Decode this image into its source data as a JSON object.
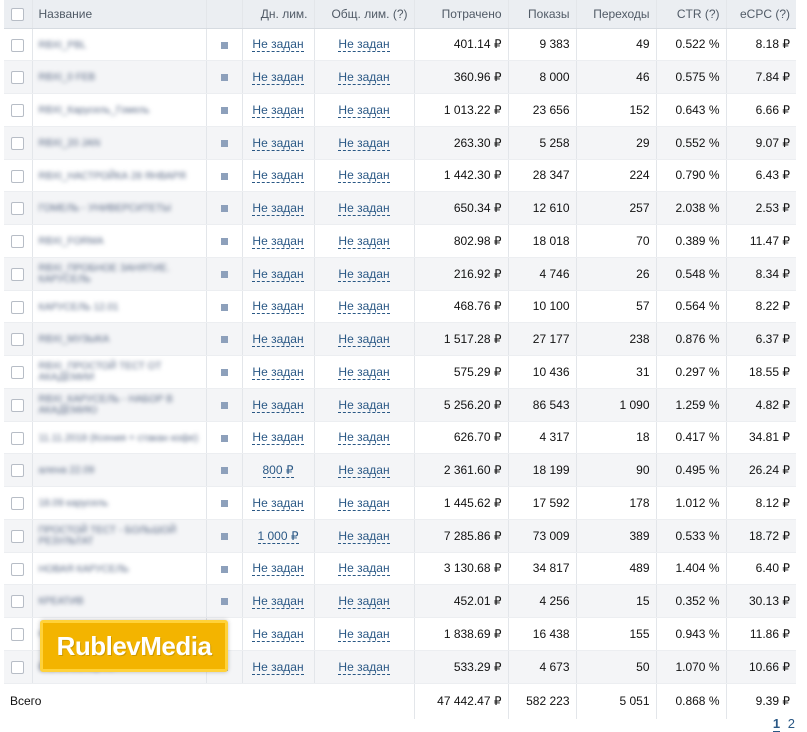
{
  "header": {
    "name": "Название",
    "daily_limit": "Дн. лим.",
    "total_limit": "Общ. лим. (?)",
    "spent": "Потрачено",
    "impressions": "Показы",
    "clicks": "Переходы",
    "ctr": "CTR (?)",
    "ecpc": "eCPC (?)"
  },
  "rows": [
    {
      "name": "RBXI_PBL",
      "daily": "Не задан",
      "total": "Не задан",
      "spent": "401.14 ₽",
      "impressions": "9 383",
      "clicks": "49",
      "ctr": "0.522 %",
      "ecpc": "8.18 ₽"
    },
    {
      "name": "RBXI_0 FEB",
      "daily": "Не задан",
      "total": "Не задан",
      "spent": "360.96 ₽",
      "impressions": "8 000",
      "clicks": "46",
      "ctr": "0.575 %",
      "ecpc": "7.84 ₽"
    },
    {
      "name": "RBXI_Карусель_Гомель",
      "daily": "Не задан",
      "total": "Не задан",
      "spent": "1 013.22 ₽",
      "impressions": "23 656",
      "clicks": "152",
      "ctr": "0.643 %",
      "ecpc": "6.66 ₽"
    },
    {
      "name": "RBXI_20 JAN",
      "daily": "Не задан",
      "total": "Не задан",
      "spent": "263.30 ₽",
      "impressions": "5 258",
      "clicks": "29",
      "ctr": "0.552 %",
      "ecpc": "9.07 ₽"
    },
    {
      "name": "RBXI_НАСТРОЙКА 28 ЯНВАРЯ",
      "daily": "Не задан",
      "total": "Не задан",
      "spent": "1 442.30 ₽",
      "impressions": "28 347",
      "clicks": "224",
      "ctr": "0.790 %",
      "ecpc": "6.43 ₽"
    },
    {
      "name": "ГОМЕЛЬ - УНИВЕРСИТЕТЫ",
      "daily": "Не задан",
      "total": "Не задан",
      "spent": "650.34 ₽",
      "impressions": "12 610",
      "clicks": "257",
      "ctr": "2.038 %",
      "ecpc": "2.53 ₽"
    },
    {
      "name": "RBXI_FORMA",
      "daily": "Не задан",
      "total": "Не задан",
      "spent": "802.98 ₽",
      "impressions": "18 018",
      "clicks": "70",
      "ctr": "0.389 %",
      "ecpc": "11.47 ₽"
    },
    {
      "name": "RBXI_ПРОБНОЕ ЗАНЯТИЕ. КАРУСЕЛЬ",
      "daily": "Не задан",
      "total": "Не задан",
      "spent": "216.92 ₽",
      "impressions": "4 746",
      "clicks": "26",
      "ctr": "0.548 %",
      "ecpc": "8.34 ₽"
    },
    {
      "name": "КАРУСЕЛЬ 12.01",
      "daily": "Не задан",
      "total": "Не задан",
      "spent": "468.76 ₽",
      "impressions": "10 100",
      "clicks": "57",
      "ctr": "0.564 %",
      "ecpc": "8.22 ₽"
    },
    {
      "name": "RBXI_МУЗЫКА",
      "daily": "Не задан",
      "total": "Не задан",
      "spent": "1 517.28 ₽",
      "impressions": "27 177",
      "clicks": "238",
      "ctr": "0.876 %",
      "ecpc": "6.37 ₽"
    },
    {
      "name": "RBXI_ПРОСТОЙ ТЕСТ ОТ АКАДЕМИИ",
      "daily": "Не задан",
      "total": "Не задан",
      "spent": "575.29 ₽",
      "impressions": "10 436",
      "clicks": "31",
      "ctr": "0.297 %",
      "ecpc": "18.55 ₽"
    },
    {
      "name": "RBXI_КАРУСЕЛЬ - НАБОР В АКАДЕМИЮ",
      "daily": "Не задан",
      "total": "Не задан",
      "spent": "5 256.20 ₽",
      "impressions": "86 543",
      "clicks": "1 090",
      "ctr": "1.259 %",
      "ecpc": "4.82 ₽"
    },
    {
      "name": "11.11.2018 (Ксения + стакан кофе)",
      "daily": "Не задан",
      "total": "Не задан",
      "spent": "626.70 ₽",
      "impressions": "4 317",
      "clicks": "18",
      "ctr": "0.417 %",
      "ecpc": "34.81 ₽"
    },
    {
      "name": "алена 22.09",
      "daily": "800 ₽",
      "total": "Не задан",
      "spent": "2 361.60 ₽",
      "impressions": "18 199",
      "clicks": "90",
      "ctr": "0.495 %",
      "ecpc": "26.24 ₽"
    },
    {
      "name": "18.09 карусель",
      "daily": "Не задан",
      "total": "Не задан",
      "spent": "1 445.62 ₽",
      "impressions": "17 592",
      "clicks": "178",
      "ctr": "1.012 %",
      "ecpc": "8.12 ₽"
    },
    {
      "name": "ПРОСТОЙ ТЕСТ - БОЛЬШОЙ РЕЗУЛЬТАТ",
      "daily": "1 000 ₽",
      "total": "Не задан",
      "spent": "7 285.86 ₽",
      "impressions": "73 009",
      "clicks": "389",
      "ctr": "0.533 %",
      "ecpc": "18.72 ₽"
    },
    {
      "name": "НОВАЯ КАРУСЕЛЬ",
      "daily": "Не задан",
      "total": "Не задан",
      "spent": "3 130.68 ₽",
      "impressions": "34 817",
      "clicks": "489",
      "ctr": "1.404 %",
      "ecpc": "6.40 ₽"
    },
    {
      "name": "КРЕАТИВ",
      "daily": "Не задан",
      "total": "Не задан",
      "spent": "452.01 ₽",
      "impressions": "4 256",
      "clicks": "15",
      "ctr": "0.352 %",
      "ecpc": "30.13 ₽"
    },
    {
      "name": "НАСТРОЙКИ ГОМ",
      "daily": "Не задан",
      "total": "Не задан",
      "spent": "1 838.69 ₽",
      "impressions": "16 438",
      "clicks": "155",
      "ctr": "0.943 %",
      "ecpc": "11.86 ₽"
    },
    {
      "name": "В ЗАЛ/СЕКЦИЮ",
      "daily": "Не задан",
      "total": "Не задан",
      "spent": "533.29 ₽",
      "impressions": "4 673",
      "clicks": "50",
      "ctr": "1.070 %",
      "ecpc": "10.66 ₽"
    }
  ],
  "totals": {
    "label": "Всего",
    "spent": "47 442.47 ₽",
    "impressions": "582 223",
    "clicks": "5 051",
    "ctr": "0.868 %",
    "ecpc": "9.39 ₽"
  },
  "watermark": "RublevMedia",
  "pager": {
    "current": "1",
    "next": "2"
  },
  "colors": {
    "link": "#2a5885",
    "header_bg": "#ebeef2",
    "watermark_bg": "#f3b400"
  }
}
